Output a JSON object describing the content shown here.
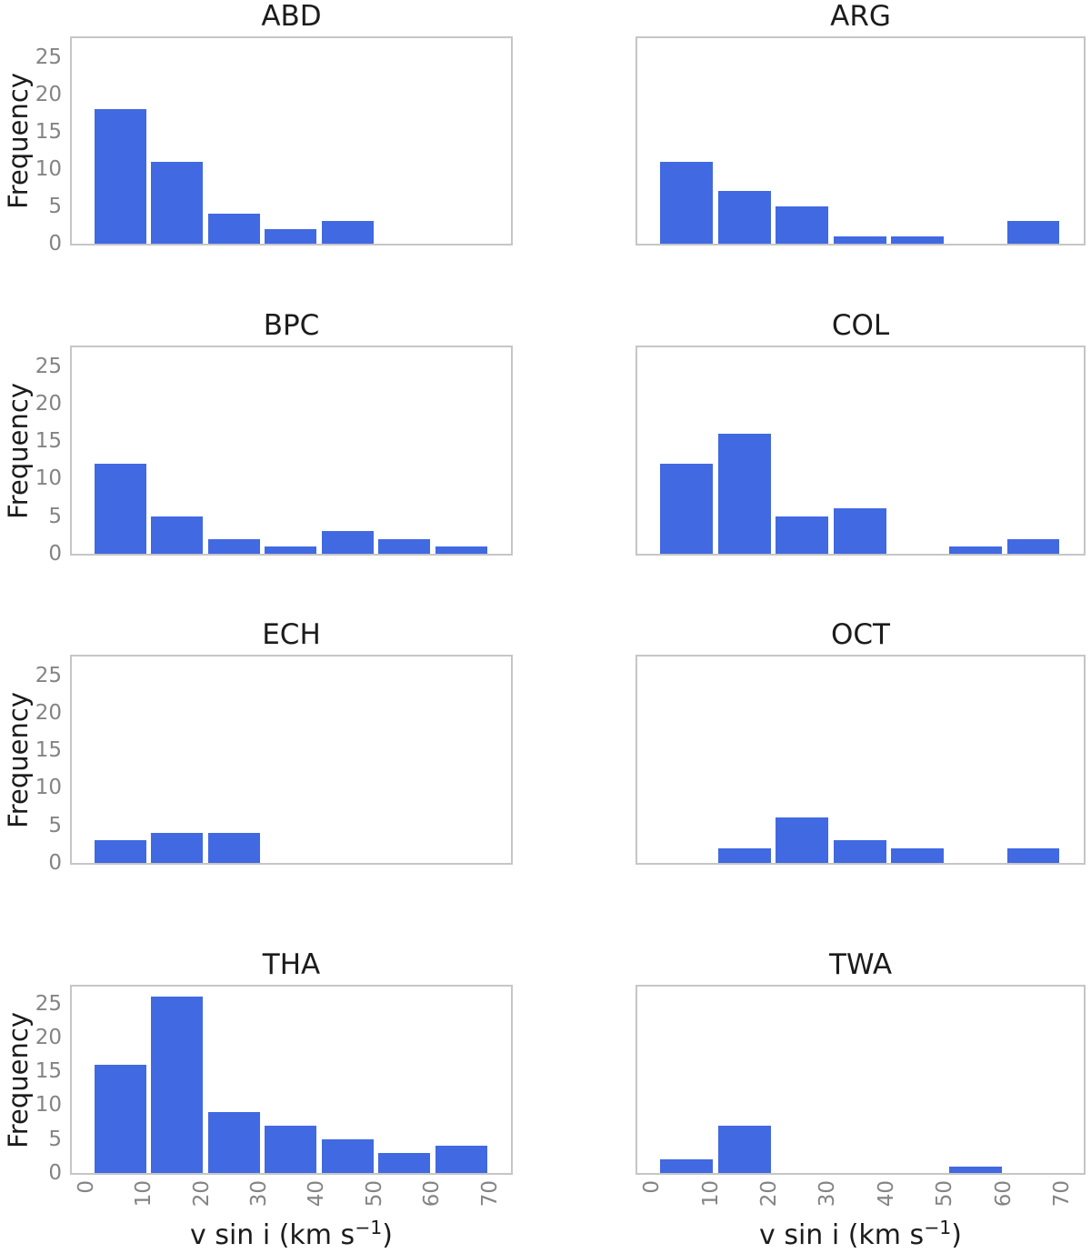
{
  "figure": {
    "ylabel": "Frequency",
    "xlabel_main": "v sin i (km s",
    "xlabel_sup": "−1",
    "xlabel_end": ")"
  },
  "colors": {
    "bar": "#4169E1",
    "spine": "#c6c6c6",
    "tick_text": "#848484",
    "label_text": "#1c1c1c",
    "background": "#ffffff"
  },
  "chart_data": {
    "type": "bar",
    "subtype": "histogram_grid_4x2",
    "xlabel": "v sin i (km s^-1)",
    "ylabel": "Frequency",
    "grid": "off",
    "legend": "none",
    "xticks": [
      0,
      10,
      20,
      30,
      40,
      50,
      60,
      70
    ],
    "yticks": [
      0,
      5,
      10,
      15,
      20,
      25
    ],
    "ylim": [
      0,
      27.5
    ],
    "xlim": [
      -2.5,
      73.7
    ],
    "bin_range": [
      1,
      70
    ],
    "n_bins": 7,
    "categories": [
      "0-10",
      "10-20",
      "20-30",
      "30-40",
      "40-50",
      "50-60",
      "60-70"
    ],
    "panels": [
      {
        "title": "ABD",
        "values": [
          18,
          11,
          4,
          2,
          3,
          0,
          0
        ]
      },
      {
        "title": "ARG",
        "values": [
          11,
          7,
          5,
          1,
          1,
          0,
          3
        ]
      },
      {
        "title": "BPC",
        "values": [
          12,
          5,
          2,
          1,
          3,
          2,
          1
        ]
      },
      {
        "title": "COL",
        "values": [
          12,
          16,
          5,
          6,
          0,
          1,
          2
        ]
      },
      {
        "title": "ECH",
        "values": [
          3,
          4,
          4,
          0,
          0,
          0,
          0
        ]
      },
      {
        "title": "OCT",
        "values": [
          0,
          2,
          6,
          3,
          2,
          0,
          2
        ]
      },
      {
        "title": "THA",
        "values": [
          16,
          26,
          9,
          7,
          5,
          3,
          4
        ]
      },
      {
        "title": "TWA",
        "values": [
          2,
          7,
          0,
          0,
          0,
          1,
          0
        ]
      }
    ]
  }
}
